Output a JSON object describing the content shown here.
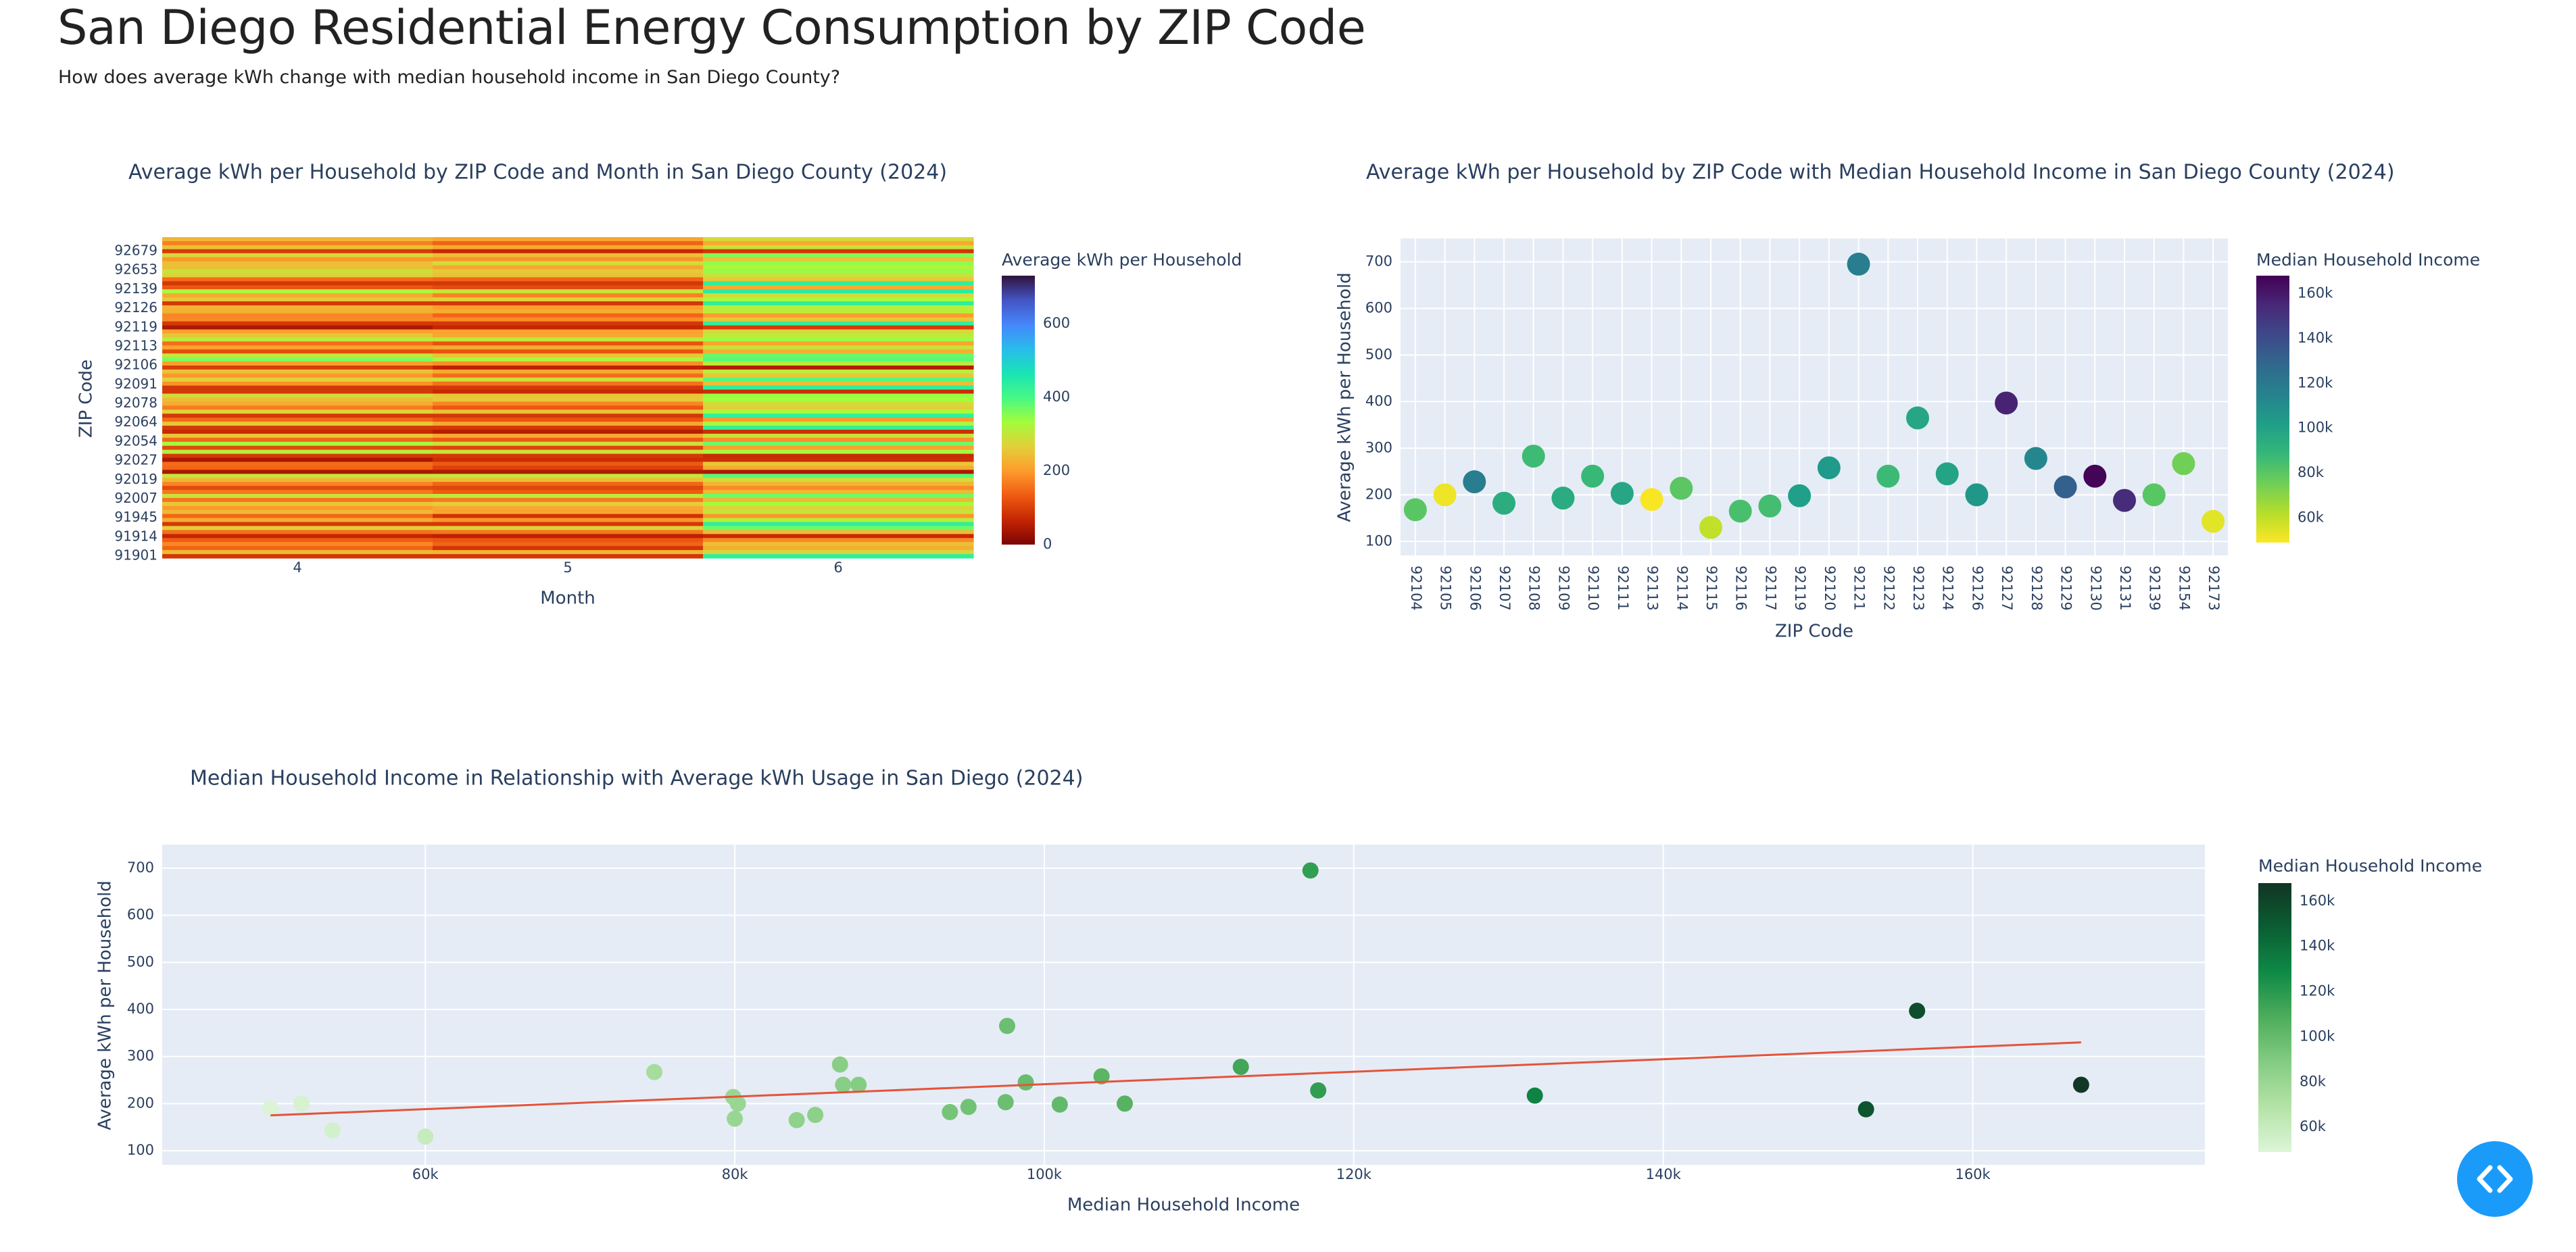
{
  "page": {
    "title": "San Diego Residential Energy Consumption by ZIP Code",
    "subtitle": "How does average kWh change with median household income in San Diego County?"
  },
  "colors": {
    "plot_bg": "#e5ecf6",
    "grid": "#ffffff",
    "trendline": "#e4543a",
    "code_button": "#1a9bfa"
  },
  "icons": {
    "code_button": "code-brackets-icon"
  },
  "chart_data": [
    {
      "id": "heatmap",
      "type": "heatmap",
      "title": "Average kWh per Household by ZIP Code and Month in San Diego County (2024)",
      "xlabel": "Month",
      "ylabel": "ZIP Code",
      "x": [
        "4",
        "5",
        "6"
      ],
      "y_ticks": [
        "92679",
        "92653",
        "92139",
        "92126",
        "92119",
        "92113",
        "92106",
        "92091",
        "92078",
        "92064",
        "92054",
        "92027",
        "92019",
        "92007",
        "91945",
        "91914",
        "91901"
      ],
      "row_count": 80,
      "colorscale": "Turbo",
      "zrange": [
        0,
        730
      ],
      "colorbar_title": "Average kWh per Household",
      "colorbar_ticks": [
        "0",
        "200",
        "400",
        "600"
      ]
    },
    {
      "id": "zip_scatter",
      "type": "scatter",
      "title": "Average kWh per Household by ZIP Code with Median Household Income in San Diego County (2024)",
      "xlabel": "ZIP Code",
      "ylabel": "Average kWh per Household",
      "categories": [
        "92104",
        "92105",
        "92106",
        "92107",
        "92108",
        "92109",
        "92110",
        "92111",
        "92113",
        "92114",
        "92115",
        "92116",
        "92117",
        "92119",
        "92120",
        "92121",
        "92122",
        "92123",
        "92124",
        "92126",
        "92127",
        "92128",
        "92129",
        "92130",
        "92131",
        "92139",
        "92154",
        "92173"
      ],
      "values": [
        168,
        200,
        228,
        182,
        283,
        193,
        240,
        203,
        190,
        214,
        130,
        165,
        176,
        198,
        258,
        695,
        240,
        365,
        245,
        200,
        397,
        278,
        217,
        240,
        188,
        200,
        267,
        143
      ],
      "income": [
        80000,
        52000,
        117700,
        93900,
        86800,
        95100,
        88000,
        97500,
        50000,
        79900,
        60000,
        84000,
        85200,
        101000,
        103700,
        117200,
        87000,
        97600,
        98800,
        105200,
        156400,
        112700,
        131700,
        167000,
        153100,
        80200,
        74800,
        54000
      ],
      "ylim": [
        70,
        750
      ],
      "yticks": [
        "100",
        "200",
        "300",
        "400",
        "500",
        "600",
        "700"
      ],
      "colorscale": "Viridis reversed",
      "colorbar_title": "Median Household Income",
      "colorbar_ticks": [
        "60k",
        "80k",
        "100k",
        "120k",
        "140k",
        "160k"
      ]
    },
    {
      "id": "income_scatter",
      "type": "scatter",
      "title": "Median Household Income in Relationship with Average kWh Usage in San Diego (2024)",
      "xlabel": "Median Household Income",
      "ylabel": "Average kWh per Household",
      "xlim": [
        43000,
        175000
      ],
      "ylim": [
        70,
        750
      ],
      "xticks": [
        "60k",
        "80k",
        "100k",
        "120k",
        "140k",
        "160k"
      ],
      "yticks": [
        "100",
        "200",
        "300",
        "400",
        "500",
        "600",
        "700"
      ],
      "colorscale": "Greens",
      "colorbar_title": "Median Household Income",
      "colorbar_ticks": [
        "60k",
        "80k",
        "100k",
        "120k",
        "140k",
        "160k"
      ],
      "trendline": {
        "x": [
          50000,
          167000
        ],
        "y": [
          175,
          330
        ]
      }
    }
  ]
}
